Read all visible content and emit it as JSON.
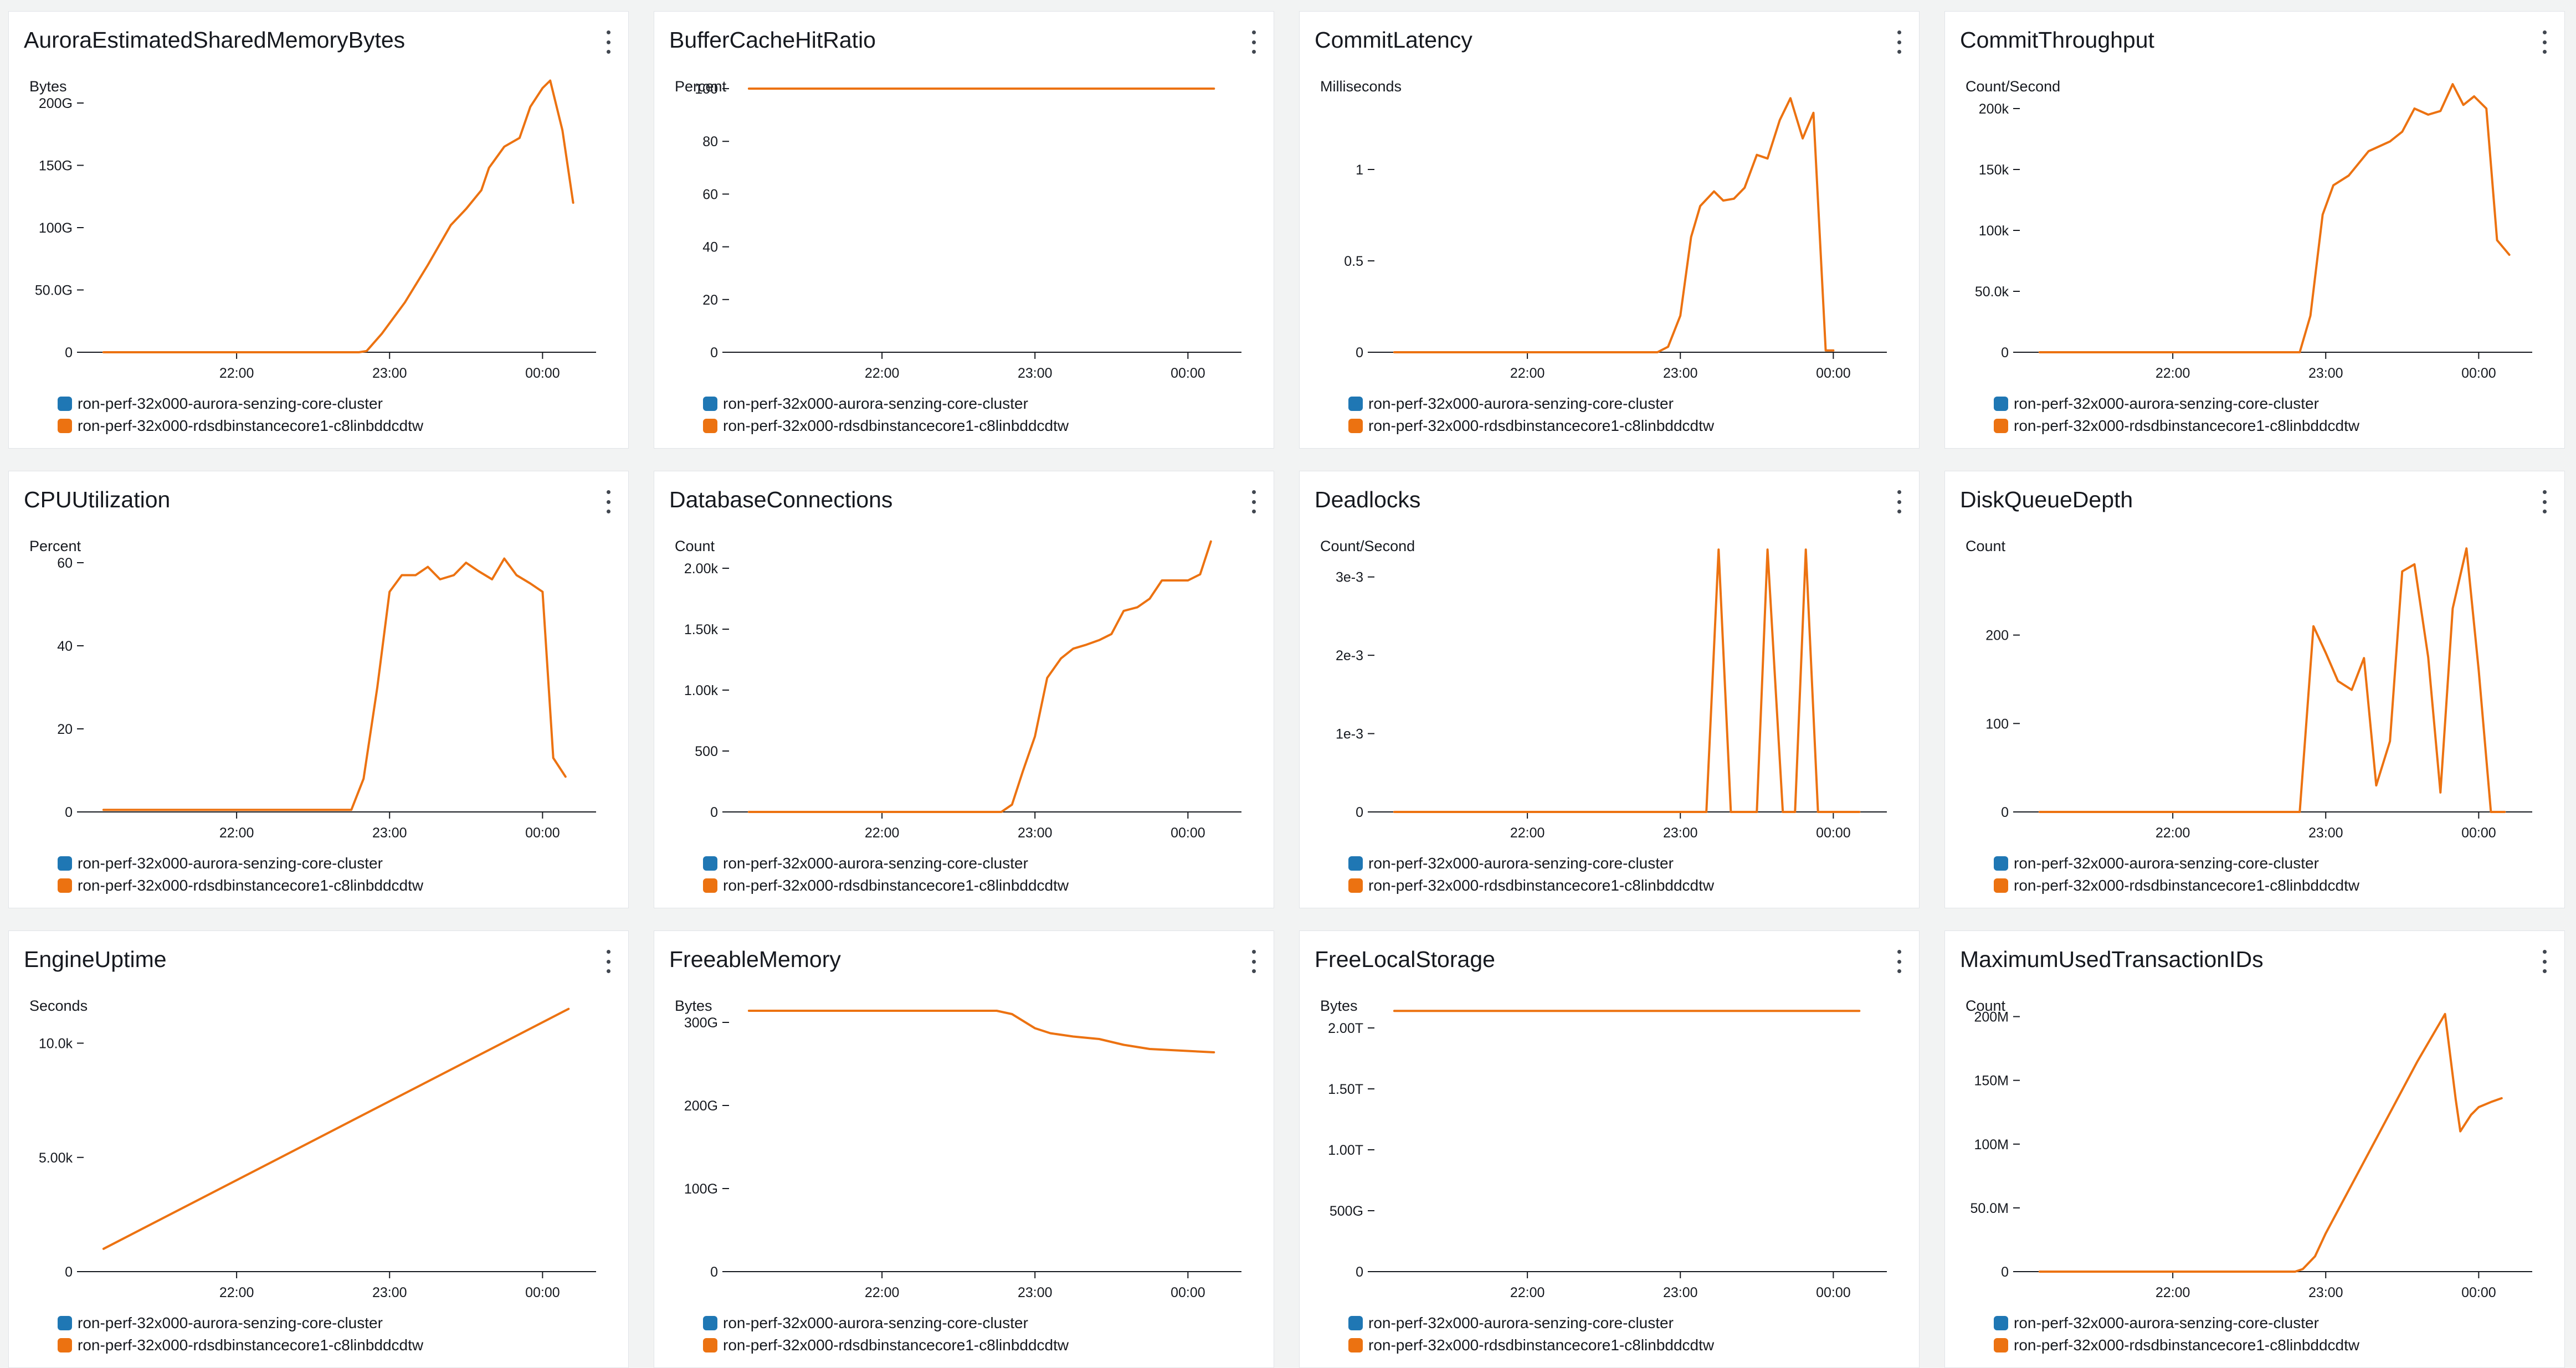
{
  "chart_data": [
    {
      "type": "line",
      "title": "AuroraEstimatedSharedMemoryBytes",
      "ylabel": "Bytes",
      "xticks": [
        "22:00",
        "23:00",
        "00:00"
      ],
      "ytick_values": [
        0,
        50,
        100,
        150,
        200
      ],
      "ytick_labels": [
        "0",
        "50.0G",
        "100G",
        "150G",
        "200G"
      ],
      "ylim": [
        0,
        220
      ],
      "legend": [
        "ron-perf-32x000-aurora-senzing-core-cluster",
        "ron-perf-32x000-rdsdbinstancecore1-c8linbddcdtw"
      ],
      "series": [
        {
          "name": "ron-perf-32x000-rdsdbinstancecore1-c8linbddcdtw",
          "points": [
            [
              21.13,
              0
            ],
            [
              22.8,
              0
            ],
            [
              22.85,
              1
            ],
            [
              22.95,
              15
            ],
            [
              23.1,
              40
            ],
            [
              23.25,
              70
            ],
            [
              23.4,
              102
            ],
            [
              23.5,
              115
            ],
            [
              23.6,
              130
            ],
            [
              23.65,
              148
            ],
            [
              23.75,
              165
            ],
            [
              23.85,
              172
            ],
            [
              23.92,
              197
            ],
            [
              24.0,
              212
            ],
            [
              24.05,
              218
            ],
            [
              24.13,
              178
            ],
            [
              24.2,
              120
            ]
          ]
        }
      ]
    },
    {
      "type": "line",
      "title": "BufferCacheHitRatio",
      "ylabel": "Percent",
      "xticks": [
        "22:00",
        "23:00",
        "00:00"
      ],
      "ytick_values": [
        0,
        20,
        40,
        60,
        80,
        100
      ],
      "ytick_labels": [
        "0",
        "20",
        "40",
        "60",
        "80",
        "100"
      ],
      "ylim": [
        0,
        104
      ],
      "legend": [
        "ron-perf-32x000-aurora-senzing-core-cluster",
        "ron-perf-32x000-rdsdbinstancecore1-c8linbddcdtw"
      ],
      "series": [
        {
          "name": "ron-perf-32x000-rdsdbinstancecore1-c8linbddcdtw",
          "points": [
            [
              21.13,
              100
            ],
            [
              24.17,
              100
            ]
          ]
        }
      ]
    },
    {
      "type": "line",
      "title": "CommitLatency",
      "ylabel": "Milliseconds",
      "xticks": [
        "22:00",
        "23:00",
        "00:00"
      ],
      "ytick_values": [
        0,
        0.5,
        1
      ],
      "ytick_labels": [
        "0",
        "0.5",
        "1"
      ],
      "ylim": [
        0,
        1.5
      ],
      "legend": [
        "ron-perf-32x000-aurora-senzing-core-cluster",
        "ron-perf-32x000-rdsdbinstancecore1-c8linbddcdtw"
      ],
      "series": [
        {
          "name": "ron-perf-32x000-rdsdbinstancecore1-c8linbddcdtw",
          "points": [
            [
              21.13,
              0
            ],
            [
              22.85,
              0
            ],
            [
              22.92,
              0.03
            ],
            [
              23.0,
              0.2
            ],
            [
              23.07,
              0.63
            ],
            [
              23.13,
              0.8
            ],
            [
              23.22,
              0.88
            ],
            [
              23.28,
              0.83
            ],
            [
              23.35,
              0.84
            ],
            [
              23.42,
              0.9
            ],
            [
              23.5,
              1.08
            ],
            [
              23.57,
              1.06
            ],
            [
              23.65,
              1.27
            ],
            [
              23.72,
              1.39
            ],
            [
              23.8,
              1.17
            ],
            [
              23.87,
              1.31
            ],
            [
              23.95,
              0.01
            ],
            [
              24.0,
              0.01
            ]
          ]
        }
      ]
    },
    {
      "type": "line",
      "title": "CommitThroughput",
      "ylabel": "Count/Second",
      "xticks": [
        "22:00",
        "23:00",
        "00:00"
      ],
      "ytick_values": [
        0,
        50,
        100,
        150,
        200
      ],
      "ytick_labels": [
        "0",
        "50.0k",
        "100k",
        "150k",
        "200k"
      ],
      "ylim": [
        0,
        225
      ],
      "legend": [
        "ron-perf-32x000-aurora-senzing-core-cluster",
        "ron-perf-32x000-rdsdbinstancecore1-c8linbddcdtw"
      ],
      "series": [
        {
          "name": "ron-perf-32x000-rdsdbinstancecore1-c8linbddcdtw",
          "points": [
            [
              21.13,
              0
            ],
            [
              22.83,
              0
            ],
            [
              22.9,
              30
            ],
            [
              22.98,
              113
            ],
            [
              23.05,
              137
            ],
            [
              23.15,
              145
            ],
            [
              23.28,
              165
            ],
            [
              23.42,
              173
            ],
            [
              23.5,
              181
            ],
            [
              23.58,
              200
            ],
            [
              23.67,
              195
            ],
            [
              23.75,
              198
            ],
            [
              23.83,
              220
            ],
            [
              23.9,
              203
            ],
            [
              23.97,
              210
            ],
            [
              24.05,
              200
            ],
            [
              24.12,
              92
            ],
            [
              24.2,
              80
            ]
          ]
        }
      ]
    },
    {
      "type": "line",
      "title": "CPUUtilization",
      "ylabel": "Percent",
      "xticks": [
        "22:00",
        "23:00",
        "00:00"
      ],
      "ytick_values": [
        0,
        20,
        40,
        60
      ],
      "ytick_labels": [
        "0",
        "20",
        "40",
        "60"
      ],
      "ylim": [
        0,
        66
      ],
      "legend": [
        "ron-perf-32x000-aurora-senzing-core-cluster",
        "ron-perf-32x000-rdsdbinstancecore1-c8linbddcdtw"
      ],
      "series": [
        {
          "name": "ron-perf-32x000-rdsdbinstancecore1-c8linbddcdtw",
          "points": [
            [
              21.13,
              0.5
            ],
            [
              22.75,
              0.5
            ],
            [
              22.83,
              8
            ],
            [
              22.92,
              30
            ],
            [
              23.0,
              53
            ],
            [
              23.08,
              57
            ],
            [
              23.17,
              57
            ],
            [
              23.25,
              59
            ],
            [
              23.33,
              56
            ],
            [
              23.42,
              57
            ],
            [
              23.5,
              60
            ],
            [
              23.58,
              58
            ],
            [
              23.67,
              56
            ],
            [
              23.75,
              61
            ],
            [
              23.83,
              57
            ],
            [
              23.92,
              55
            ],
            [
              24.0,
              53
            ],
            [
              24.07,
              13
            ],
            [
              24.15,
              8.5
            ]
          ]
        }
      ]
    },
    {
      "type": "line",
      "title": "DatabaseConnections",
      "ylabel": "Count",
      "xticks": [
        "22:00",
        "23:00",
        "00:00"
      ],
      "ytick_values": [
        0,
        500,
        1000,
        1500,
        2000
      ],
      "ytick_labels": [
        "0",
        "500",
        "1.00k",
        "1.50k",
        "2.00k"
      ],
      "ylim": [
        0,
        2250
      ],
      "legend": [
        "ron-perf-32x000-aurora-senzing-core-cluster",
        "ron-perf-32x000-rdsdbinstancecore1-c8linbddcdtw"
      ],
      "series": [
        {
          "name": "ron-perf-32x000-rdsdbinstancecore1-c8linbddcdtw",
          "points": [
            [
              21.13,
              0
            ],
            [
              22.78,
              0
            ],
            [
              22.85,
              60
            ],
            [
              22.92,
              330
            ],
            [
              23.0,
              620
            ],
            [
              23.08,
              1100
            ],
            [
              23.17,
              1260
            ],
            [
              23.25,
              1340
            ],
            [
              23.33,
              1370
            ],
            [
              23.42,
              1410
            ],
            [
              23.5,
              1460
            ],
            [
              23.58,
              1650
            ],
            [
              23.67,
              1680
            ],
            [
              23.75,
              1750
            ],
            [
              23.83,
              1900
            ],
            [
              23.92,
              1900
            ],
            [
              24.0,
              1900
            ],
            [
              24.08,
              1950
            ],
            [
              24.15,
              2220
            ]
          ]
        }
      ]
    },
    {
      "type": "line",
      "title": "Deadlocks",
      "ylabel": "Count/Second",
      "xticks": [
        "22:00",
        "23:00",
        "00:00"
      ],
      "ytick_values": [
        0,
        1,
        2,
        3
      ],
      "ytick_labels": [
        "0",
        "1e-3",
        "2e-3",
        "3e-3"
      ],
      "ylim": [
        0,
        3.5
      ],
      "legend": [
        "ron-perf-32x000-aurora-senzing-core-cluster",
        "ron-perf-32x000-rdsdbinstancecore1-c8linbddcdtw"
      ],
      "series": [
        {
          "name": "ron-perf-32x000-rdsdbinstancecore1-c8linbddcdtw",
          "points": [
            [
              21.13,
              0
            ],
            [
              23.17,
              0
            ],
            [
              23.25,
              3.35
            ],
            [
              23.33,
              0
            ],
            [
              23.5,
              0
            ],
            [
              23.57,
              3.35
            ],
            [
              23.67,
              0
            ],
            [
              23.75,
              0
            ],
            [
              23.82,
              3.35
            ],
            [
              23.9,
              0
            ],
            [
              24.17,
              0
            ]
          ]
        }
      ]
    },
    {
      "type": "line",
      "title": "DiskQueueDepth",
      "ylabel": "Count",
      "xticks": [
        "22:00",
        "23:00",
        "00:00"
      ],
      "ytick_values": [
        0,
        100,
        200
      ],
      "ytick_labels": [
        "0",
        "100",
        "200"
      ],
      "ylim": [
        0,
        310
      ],
      "legend": [
        "ron-perf-32x000-aurora-senzing-core-cluster",
        "ron-perf-32x000-rdsdbinstancecore1-c8linbddcdtw"
      ],
      "series": [
        {
          "name": "ron-perf-32x000-rdsdbinstancecore1-c8linbddcdtw",
          "points": [
            [
              21.13,
              0
            ],
            [
              22.83,
              0
            ],
            [
              22.92,
              210
            ],
            [
              23.0,
              180
            ],
            [
              23.08,
              148
            ],
            [
              23.17,
              138
            ],
            [
              23.25,
              174
            ],
            [
              23.33,
              30
            ],
            [
              23.42,
              80
            ],
            [
              23.5,
              272
            ],
            [
              23.58,
              280
            ],
            [
              23.67,
              175
            ],
            [
              23.75,
              22
            ],
            [
              23.83,
              230
            ],
            [
              23.92,
              298
            ],
            [
              24.0,
              160
            ],
            [
              24.08,
              0
            ],
            [
              24.17,
              0
            ]
          ]
        }
      ]
    },
    {
      "type": "line",
      "title": "EngineUptime",
      "ylabel": "Seconds",
      "xticks": [
        "22:00",
        "23:00",
        "00:00"
      ],
      "ytick_values": [
        0,
        5000,
        10000
      ],
      "ytick_labels": [
        "0",
        "5.00k",
        "10.0k"
      ],
      "ylim": [
        0,
        12000
      ],
      "legend": [
        "ron-perf-32x000-aurora-senzing-core-cluster",
        "ron-perf-32x000-rdsdbinstancecore1-c8linbddcdtw"
      ],
      "series": [
        {
          "name": "ron-perf-32x000-rdsdbinstancecore1-c8linbddcdtw",
          "points": [
            [
              21.13,
              1000
            ],
            [
              24.17,
              11500
            ]
          ]
        }
      ]
    },
    {
      "type": "line",
      "title": "FreeableMemory",
      "ylabel": "Bytes",
      "xticks": [
        "22:00",
        "23:00",
        "00:00"
      ],
      "ytick_values": [
        0,
        100,
        200,
        300
      ],
      "ytick_labels": [
        "0",
        "100G",
        "200G",
        "300G"
      ],
      "ylim": [
        0,
        330
      ],
      "legend": [
        "ron-perf-32x000-aurora-senzing-core-cluster",
        "ron-perf-32x000-rdsdbinstancecore1-c8linbddcdtw"
      ],
      "series": [
        {
          "name": "ron-perf-32x000-rdsdbinstancecore1-c8linbddcdtw",
          "points": [
            [
              21.13,
              314
            ],
            [
              22.75,
              314
            ],
            [
              22.85,
              310
            ],
            [
              23.0,
              293
            ],
            [
              23.1,
              287
            ],
            [
              23.25,
              283
            ],
            [
              23.42,
              280
            ],
            [
              23.58,
              273
            ],
            [
              23.75,
              268
            ],
            [
              24.17,
              264
            ]
          ]
        }
      ]
    },
    {
      "type": "line",
      "title": "FreeLocalStorage",
      "ylabel": "Bytes",
      "xticks": [
        "22:00",
        "23:00",
        "00:00"
      ],
      "ytick_values": [
        0,
        500,
        1000,
        1500,
        2000
      ],
      "ytick_labels": [
        "0",
        "500G",
        "1.00T",
        "1.50T",
        "2.00T"
      ],
      "ylim": [
        0,
        2250
      ],
      "legend": [
        "ron-perf-32x000-aurora-senzing-core-cluster",
        "ron-perf-32x000-rdsdbinstancecore1-c8linbddcdtw"
      ],
      "series": [
        {
          "name": "ron-perf-32x000-rdsdbinstancecore1-c8linbddcdtw",
          "points": [
            [
              21.13,
              2140
            ],
            [
              24.17,
              2140
            ]
          ]
        }
      ]
    },
    {
      "type": "line",
      "title": "MaximumUsedTransactionIDs",
      "ylabel": "Count",
      "xticks": [
        "22:00",
        "23:00",
        "00:00"
      ],
      "ytick_values": [
        0,
        50,
        100,
        150,
        200
      ],
      "ytick_labels": [
        "0",
        "50.0M",
        "100M",
        "150M",
        "200M"
      ],
      "ylim": [
        0,
        215
      ],
      "legend": [
        "ron-perf-32x000-aurora-senzing-core-cluster",
        "ron-perf-32x000-rdsdbinstancecore1-c8linbddcdtw"
      ],
      "series": [
        {
          "name": "ron-perf-32x000-rdsdbinstancecore1-c8linbddcdtw",
          "points": [
            [
              21.13,
              0
            ],
            [
              22.8,
              0
            ],
            [
              22.85,
              2
            ],
            [
              22.93,
              12
            ],
            [
              23.0,
              30
            ],
            [
              23.2,
              75
            ],
            [
              23.4,
              120
            ],
            [
              23.6,
              165
            ],
            [
              23.78,
              202
            ],
            [
              23.85,
              135
            ],
            [
              23.88,
              110
            ],
            [
              23.95,
              123
            ],
            [
              24.0,
              129
            ],
            [
              24.08,
              133
            ],
            [
              24.15,
              136
            ]
          ]
        }
      ]
    }
  ],
  "colors": {
    "cluster_series": "#1f77b4",
    "instance_series": "#ec7211",
    "axis": "#16191f",
    "gridline": "#e9ebed"
  },
  "icons": {
    "panel_menu": "vertical-ellipsis-icon"
  }
}
